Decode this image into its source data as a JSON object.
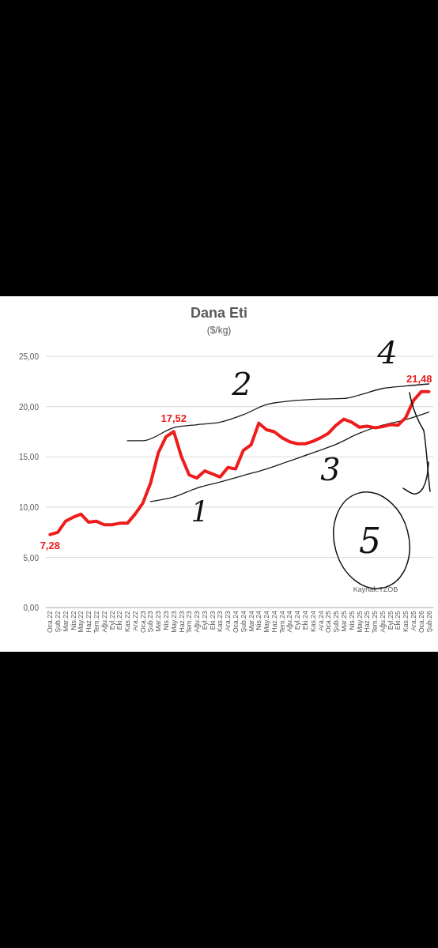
{
  "chart_data": {
    "type": "line",
    "title": "Dana Eti",
    "subtitle": "($/kg)",
    "categories": [
      "Oca.22",
      "Şub.22",
      "Mar.22",
      "Nis.22",
      "May.22",
      "Haz.22",
      "Tem.22",
      "Ağu.22",
      "Eyl.22",
      "Eki.22",
      "Kas.22",
      "Ara.22",
      "Oca.23",
      "Şub.23",
      "Mar.23",
      "Nis.23",
      "May.23",
      "Haz.23",
      "Tem.23",
      "Ağu.23",
      "Eyl.23",
      "Eki.23",
      "Kas.23",
      "Ara.23",
      "Oca.24",
      "Şub.24",
      "Mar.24",
      "Nis.24",
      "May.24",
      "Haz.24",
      "Tem.24",
      "Ağu.24",
      "Eyl.24",
      "Eki.24",
      "Kas.24",
      "Ara.24",
      "Oca.25",
      "Şub.25",
      "Mar.25",
      "Nis.25",
      "May.25",
      "Haz.25",
      "Tem.25",
      "Ağu.25",
      "Eyl.25",
      "Eki.25",
      "Kas.25",
      "Ara.25",
      "Oca.26",
      "Şub.26"
    ],
    "series": [
      {
        "color": "#ee1c1c",
        "values": [
          7.28,
          7.5,
          8.6,
          9.0,
          9.3,
          8.5,
          8.6,
          8.25,
          8.25,
          8.4,
          8.4,
          9.3,
          10.4,
          12.4,
          15.4,
          17.0,
          17.52,
          15.0,
          13.2,
          12.9,
          13.6,
          13.3,
          13.0,
          13.95,
          13.8,
          15.65,
          16.2,
          18.35,
          17.7,
          17.5,
          16.9,
          16.5,
          16.3,
          16.3,
          16.55,
          16.9,
          17.35,
          18.15,
          18.75,
          18.45,
          17.95,
          18.05,
          17.9,
          18.0,
          18.2,
          18.15,
          18.9,
          20.6,
          21.48,
          21.48
        ]
      },
      {
        "type": "line",
        "color": "#1a1a1a",
        "x": [
          "Kas.22",
          "Oca.23",
          "May.23",
          "Ağu.23",
          "Kas.23",
          "Şub.24",
          "May.24",
          "Ağu.24",
          "Ara.24",
          "Mar.25",
          "May.25",
          "Ağu.25",
          "Kas.25",
          "Şub.26"
        ],
        "values": [
          16.6,
          16.6,
          17.9,
          18.2,
          18.45,
          19.2,
          20.2,
          20.55,
          20.75,
          20.8,
          21.15,
          21.8,
          22.05,
          22.25
        ]
      },
      {
        "type": "line",
        "color": "#1a1a1a",
        "x": [
          "Şub.23",
          "May.23",
          "Ağu.23",
          "Kas.23",
          "Şub.24",
          "May.24",
          "Ağu.24",
          "Kas.24",
          "Şub.25",
          "May.25",
          "Ağu.25",
          "Kas.25",
          "Şub.26"
        ],
        "values": [
          10.55,
          11.0,
          11.9,
          12.5,
          13.15,
          13.8,
          14.6,
          15.4,
          16.25,
          17.35,
          18.15,
          18.7,
          19.45
        ]
      }
    ],
    "ylim": [
      0,
      25
    ],
    "yticks": [
      {
        "value": 0,
        "label": "0,00"
      },
      {
        "value": 5,
        "label": "5,00"
      },
      {
        "value": 10,
        "label": "10,00"
      },
      {
        "value": 15,
        "label": "15,00"
      },
      {
        "value": 20,
        "label": "20,00"
      },
      {
        "value": 25,
        "label": "25,00"
      }
    ],
    "grid": "y",
    "marker": "none",
    "line_style": "solid",
    "annotations": [
      {
        "text": "7,28",
        "x": "Oca.22",
        "y": 7.28
      },
      {
        "text": "17,52",
        "x": "May.23",
        "y": 17.52
      },
      {
        "text": "21,48",
        "x": "Şub.26",
        "y": 21.48
      },
      "Kaynak:TZOB",
      "1",
      "2",
      "3",
      "4",
      "5"
    ]
  }
}
